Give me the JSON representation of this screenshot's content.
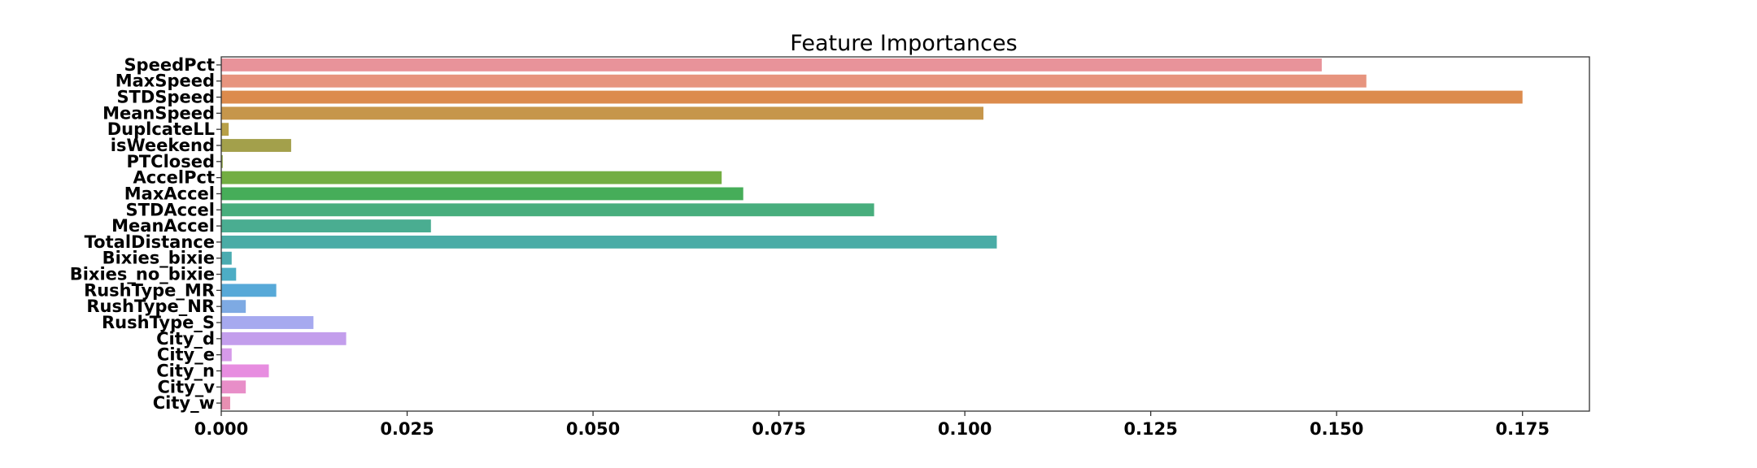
{
  "chart_data": {
    "type": "bar",
    "orientation": "horizontal",
    "title": "Feature Importances",
    "xlabel": "",
    "ylabel": "",
    "xlim": [
      0,
      0.184
    ],
    "grid": false,
    "legend": "none",
    "x_ticks": [
      "0.000",
      "0.025",
      "0.050",
      "0.075",
      "0.100",
      "0.125",
      "0.150",
      "0.175"
    ],
    "x_tick_values": [
      0,
      0.025,
      0.05,
      0.075,
      0.1,
      0.125,
      0.15,
      0.175
    ],
    "categories": [
      "SpeedPct",
      "MaxSpeed",
      "STDSpeed",
      "MeanSpeed",
      "DuplcateLL",
      "isWeekend",
      "PTClosed",
      "AccelPct",
      "MaxAccel",
      "STDAccel",
      "MeanAccel",
      "TotalDistance",
      "Bixies_bixie",
      "Bixies_no_bixie",
      "RushType_MR",
      "RushType_NR",
      "RushType_S",
      "City_d",
      "City_e",
      "City_n",
      "City_v",
      "City_w"
    ],
    "values": [
      0.148,
      0.154,
      0.175,
      0.1025,
      0.001,
      0.0094,
      0.0002,
      0.0673,
      0.0702,
      0.0878,
      0.0282,
      0.1043,
      0.0014,
      0.002,
      0.0074,
      0.0033,
      0.0124,
      0.0168,
      0.0014,
      0.0064,
      0.0033,
      0.0012
    ],
    "colors": [
      "#e8939a",
      "#e7947e",
      "#dc8b4d",
      "#c6964b",
      "#b8a048",
      "#a3a04b",
      "#93a849",
      "#73ae43",
      "#46ad59",
      "#48ae7d",
      "#4aad91",
      "#4aaca6",
      "#4aabb0",
      "#4dadc5",
      "#57a9d8",
      "#7eaae3",
      "#a6a9ef",
      "#c39eec",
      "#d69ae9",
      "#e78de0",
      "#e88ec8",
      "#e78fb2"
    ]
  }
}
